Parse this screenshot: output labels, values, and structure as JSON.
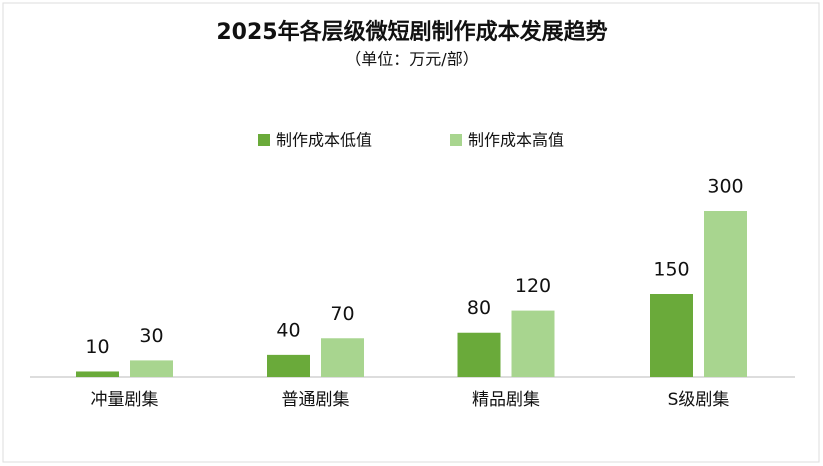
{
  "chart_data": {
    "type": "bar",
    "title": "2025年各层级微短剧制作成本发展趋势",
    "subtitle": "（单位：万元/部）",
    "categories": [
      "冲量剧集",
      "普通剧集",
      "精品剧集",
      "S级剧集"
    ],
    "series": [
      {
        "name": "制作成本低值",
        "color": "#6aaa3a",
        "values": [
          10,
          40,
          80,
          150
        ]
      },
      {
        "name": "制作成本高值",
        "color": "#a8d58f",
        "values": [
          30,
          70,
          120,
          300
        ]
      }
    ]
  }
}
